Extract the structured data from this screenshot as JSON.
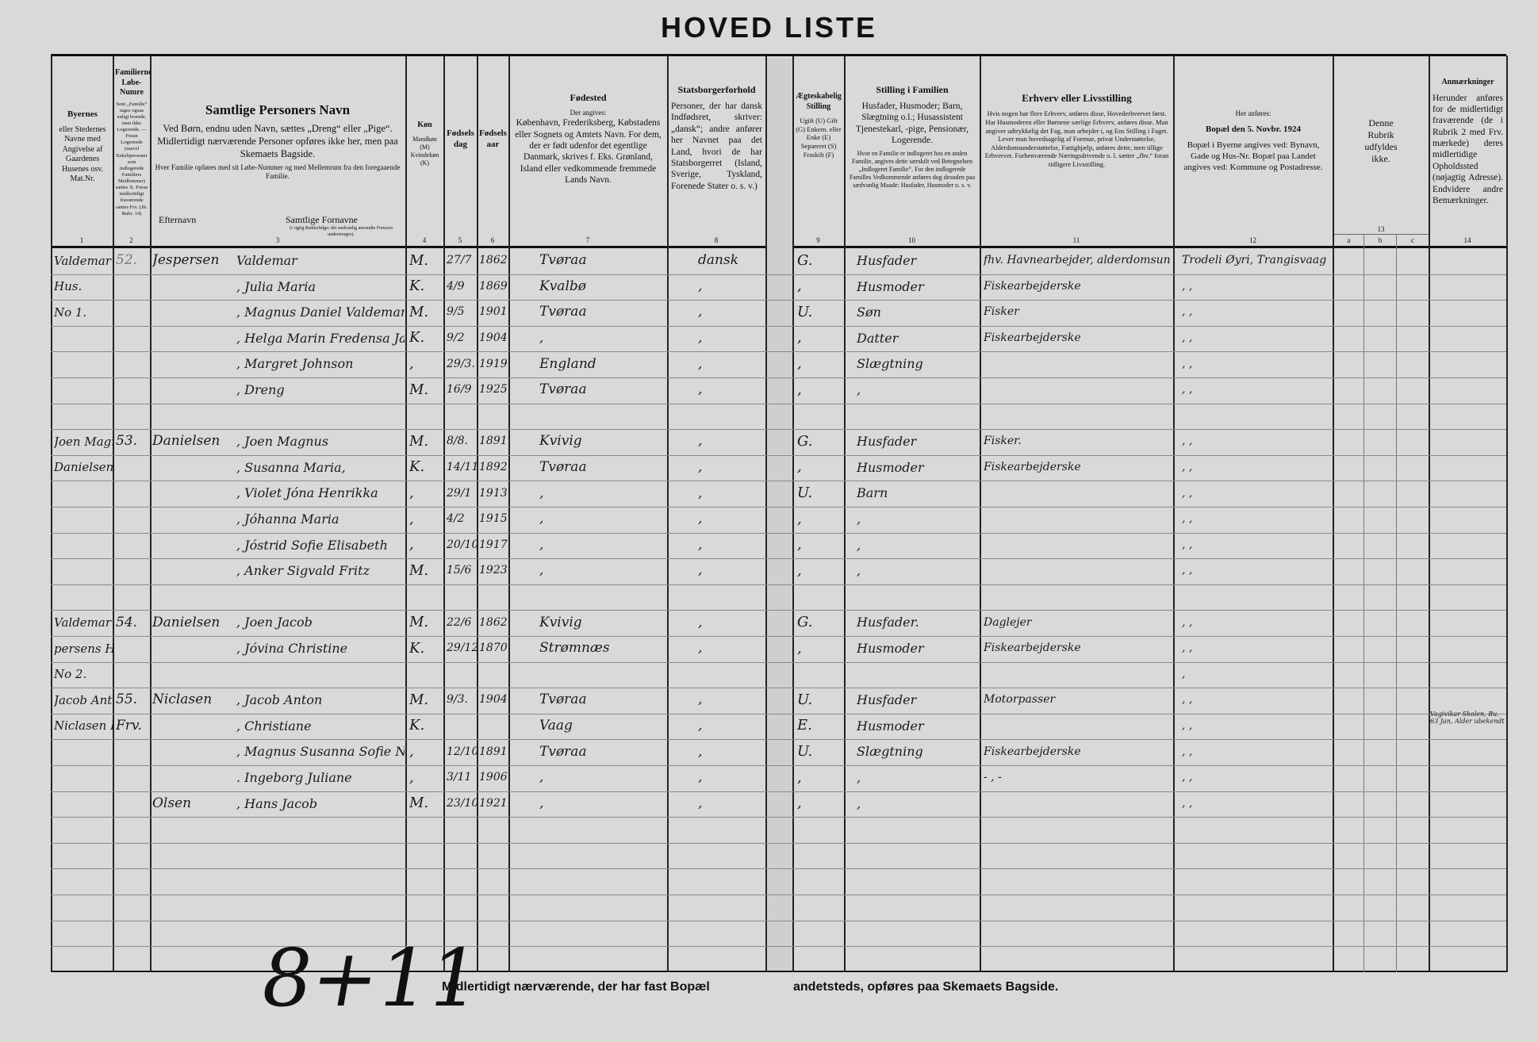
{
  "title": "HOVED LISTE",
  "header": {
    "c1": {
      "title": "Byernes",
      "body": "eller Stedernes Navne med Angivelse af Gaardenes Husenes osv. Mat.Nr.",
      "num": "1"
    },
    "c2": {
      "title": "Familiernes Løbe-Numre",
      "body": "Som „Familie“ tages ogsaa enligt boende, men ikke Logerende. — Foran Logerende (saavel Enkeltpersoner som indlogerede Familiers Medlemmer) sættes X. Foran midlertidigt fraværende sættes Frv. (Jfr. Rubr. 14)",
      "num": "2"
    },
    "c3": {
      "title": "Samtlige Personers Navn",
      "body": "Ved Børn, endnu uden Navn, sættes „Dreng“ eller „Pige“. Midlertidigt nærværende Personer opføres ikke her, men paa Skemaets Bagside.",
      "small": "Hver Familie opføres med sit Løbe-Nummer og med Mellemrum fra den foregaaende Familie.",
      "surname": "Efternavn",
      "firstnames": "Samtlige Fornavne",
      "firstnames_note": "(i rigtig Rækkefølge; det sædvanlig anvendte Fornavn understreges).",
      "num": "3"
    },
    "c4": {
      "title": "Køn",
      "body": "Mandkøn (M) Kvindekøn (K)",
      "num": "4"
    },
    "c5": {
      "title": "Fødselsdag",
      "body": "",
      "num": "5"
    },
    "c6": {
      "title": "Fødselsaar",
      "body": "",
      "num": "6"
    },
    "c7": {
      "title": "Fødested",
      "small": "Der angives:",
      "body": "København, Frederiksberg, Købstadens eller Sognets og Amtets Navn. For dem, der er født udenfor det egentlige Danmark, skrives f. Eks. Grønland, Island eller vedkommende fremmede Lands Navn.",
      "num": "7"
    },
    "c8": {
      "title": "Statsborgerforhold",
      "body": "Personer, der har dansk Indfødsret, skriver: „dansk“; andre anfører her Navnet paa det Land, hvori de har Statsborgerret (Island, Sverige, Tyskland, Forenede Stater o. s. v.)",
      "num": "8"
    },
    "c9": {
      "title": "Ægteskabelig Stilling",
      "body": "Ugift (U) Gift (G) Enkem. eller Enke (E) Separeret (S) Fraskilt (F)",
      "num": "9"
    },
    "c10": {
      "title": "Stilling i Familien",
      "body": "Husfader, Husmoder; Barn, Slægtning o.l.; Husassistent Tjenestekarl, -pige, Pensionær, Logerende.",
      "small": "Hvor en Familie er indlogeret hos en anden Familie, angives dette særskilt ved Betegnelsen „Indlogeret Familie“. For den indlogerede Familles Vedkommende anføres dog desuden paa sædvanlig Maade: Husfader, Husmoder o. s. v.",
      "num": "10"
    },
    "c11": {
      "title": "Erhverv eller Livsstilling",
      "body": "Hvis nogen har flere Erhverv, anføres disse, Hovederhvervet først. Har Husmoderen eller Børnene særlige Erhverv, anføres disse. Man angiver udtrykkelig det Fag, man arbejder i, og Ens Stilling i Faget. Lever man hovedsagelig af Formue, privat Understøttelse, Alderdomsunderstøttelse, Fattighjælp, anføres dette, men tillige Erhvervet. Forhenværende Næringsdrivende o. l. sætter „fhv.“ foran tidligere Livsstilling.",
      "num": "11"
    },
    "c12": {
      "small": "Her anføres:",
      "title": "Bopæl den 5. Novbr. 1924",
      "body": "Bopæl i Byerne angives ved: Bynavn, Gade og Hus-Nr. Bopæl paa Landet angives ved: Kommune og Postadresse.",
      "num": "12"
    },
    "c13": {
      "body": "Denne Rubrik udfyldes ikke.",
      "num": "13",
      "sub": [
        "a",
        "b",
        "c"
      ]
    },
    "c14": {
      "title": "Anmærkninger",
      "body": "Herunder anføres for de midlertidigt fraværende (de i Rubrik 2 med Frv. mærkede) deres midlertidige Opholdssted (nøjagtig Adresse). Endvidere andre Bemærkninger.",
      "num": "14"
    }
  },
  "rows": [
    {
      "place": "Valdemar Jespersen",
      "fam_no": "52.",
      "surname": "Jespersen",
      "first_names": "Valdemar",
      "sex": "M.",
      "day": "27/7",
      "year": "1862",
      "birthplace": "Tvøraa",
      "citizenship": "dansk",
      "marital": "G.",
      "position": "Husfader",
      "occupation": "fhv. Havnearbejder, alderdomsunderst.",
      "residence": "Trodeli Øyri, Trangisvaag",
      "remarks": ""
    },
    {
      "place": "Hus.",
      "fam_no": "",
      "surname": "",
      "first_names": ", Julia Maria",
      "sex": "K.",
      "day": "4/9",
      "year": "1869.",
      "birthplace": "Kvalbø",
      "citizenship": ",",
      "marital": ",",
      "position": "Husmoder",
      "occupation": "Fiskearbejderske",
      "residence": ",      ,",
      "remarks": ""
    },
    {
      "place": "No 1.",
      "fam_no": "",
      "surname": "",
      "first_names": ", Magnus Daniel Valdemar",
      "sex": "M.",
      "day": "9/5",
      "year": "1901.",
      "birthplace": "Tvøraa",
      "citizenship": ",",
      "marital": "U.",
      "position": "Søn",
      "occupation": "Fisker",
      "residence": ",      ,",
      "remarks": ""
    },
    {
      "place": "",
      "fam_no": "",
      "surname": "",
      "first_names": ", Helga Marin Fredensa Jacobina",
      "sex": "K.",
      "day": "9/2",
      "year": "1904",
      "birthplace": ",",
      "citizenship": ",",
      "marital": ",",
      "position": "Datter",
      "occupation": "Fiskearbejderske",
      "residence": ",      ,",
      "remarks": ""
    },
    {
      "place": "",
      "fam_no": "",
      "surname": "",
      "first_names": ", Margret Johnson",
      "sex": ",",
      "day": "29/3.",
      "year": "1919",
      "birthplace": "England",
      "citizenship": ",",
      "marital": ",",
      "position": "Slægtning",
      "occupation": "",
      "residence": ",      ,",
      "remarks": ""
    },
    {
      "place": "",
      "fam_no": "",
      "surname": "",
      "first_names": ", Dreng",
      "sex": "M.",
      "day": "16/9",
      "year": "1925",
      "birthplace": "Tvøraa",
      "citizenship": ",",
      "marital": ",",
      "position": ",",
      "occupation": "",
      "residence": ",      ,",
      "remarks": ""
    },
    {
      "place": "",
      "fam_no": "",
      "surname": "",
      "first_names": "",
      "sex": "",
      "day": "",
      "year": "",
      "birthplace": "",
      "citizenship": "",
      "marital": "",
      "position": "",
      "occupation": "",
      "residence": "",
      "remarks": ""
    },
    {
      "place": "Joen Magnus",
      "fam_no": "53.",
      "surname": "Danielsen",
      "first_names": ", Joen Magnus",
      "sex": "M.",
      "day": "8/8.",
      "year": "1891.",
      "birthplace": "Kvivig",
      "citizenship": ",",
      "marital": "G.",
      "position": "Husfader",
      "occupation": "Fisker.",
      "residence": ",      ,",
      "remarks": ""
    },
    {
      "place": "Danielsen Hus",
      "fam_no": "",
      "surname": "",
      "first_names": ", Susanna Maria,",
      "sex": "K.",
      "day": "14/11",
      "year": "1892",
      "birthplace": "Tvøraa",
      "citizenship": ",",
      "marital": ",",
      "position": "Husmoder",
      "occupation": "Fiskearbejderske",
      "residence": ",      ,",
      "remarks": ""
    },
    {
      "place": "",
      "fam_no": "",
      "surname": "",
      "first_names": ", Violet Jóna Henrikka",
      "sex": ",",
      "day": "29/1",
      "year": "1913",
      "birthplace": ",",
      "citizenship": ",",
      "marital": "U.",
      "position": "Barn",
      "occupation": "",
      "residence": ",      ,",
      "remarks": ""
    },
    {
      "place": "",
      "fam_no": "",
      "surname": "",
      "first_names": ", Jóhanna Maria",
      "sex": ",",
      "day": "4/2",
      "year": "1915",
      "birthplace": ",",
      "citizenship": ",",
      "marital": ",",
      "position": ",",
      "occupation": "",
      "residence": ",      ,",
      "remarks": ""
    },
    {
      "place": "",
      "fam_no": "",
      "surname": "",
      "first_names": ", Jóstrid Sofie Elisabeth",
      "sex": ",",
      "day": "20/10",
      "year": "1917",
      "birthplace": ",",
      "citizenship": ",",
      "marital": ",",
      "position": ",",
      "occupation": "",
      "residence": ",      ,",
      "remarks": ""
    },
    {
      "place": "",
      "fam_no": "",
      "surname": "",
      "first_names": ", Anker Sigvald Fritz",
      "sex": "M.",
      "day": "15/6",
      "year": "1923",
      "birthplace": ",",
      "citizenship": ",",
      "marital": ",",
      "position": ",",
      "occupation": "",
      "residence": ",      ,",
      "remarks": ""
    },
    {
      "place": "",
      "fam_no": "",
      "surname": "",
      "first_names": "",
      "sex": "",
      "day": "",
      "year": "",
      "birthplace": "",
      "citizenship": "",
      "marital": "",
      "position": "",
      "occupation": "",
      "residence": "",
      "remarks": ""
    },
    {
      "place": "Valdemar Jes-",
      "fam_no": "54.",
      "surname": "Danielsen",
      "first_names": ", Joen Jacob",
      "sex": "M.",
      "day": "22/6",
      "year": "1862",
      "birthplace": "Kvivig",
      "citizenship": ",",
      "marital": "G.",
      "position": "Husfader.",
      "occupation": "Daglejer",
      "residence": ",      ,",
      "remarks": ""
    },
    {
      "place": "persens Hus.",
      "fam_no": "",
      "surname": "",
      "first_names": ", Jóvina Christine",
      "sex": "K.",
      "day": "29/12",
      "year": "1870",
      "birthplace": "Strømnæs",
      "citizenship": ",",
      "marital": ",",
      "position": "Husmoder",
      "occupation": "Fiskearbejderske",
      "residence": ",      ,",
      "remarks": ""
    },
    {
      "place": "No 2.",
      "fam_no": "",
      "surname": "",
      "first_names": "",
      "sex": "",
      "day": "",
      "year": "",
      "birthplace": "",
      "citizenship": "",
      "marital": "",
      "position": "",
      "occupation": "",
      "residence": ",",
      "remarks": ""
    },
    {
      "place": "Jacob Anton",
      "fam_no": "55.",
      "surname": "Niclasen",
      "first_names": ", Jacob Anton",
      "sex": "M.",
      "day": "9/3.",
      "year": "1904.",
      "birthplace": "Tvøraa",
      "citizenship": ",",
      "marital": "U.",
      "position": "Husfader",
      "occupation": "Motorpasser",
      "residence": ",      ,",
      "remarks": ""
    },
    {
      "place": "Niclasen Hus",
      "fam_no": "Frv.",
      "surname": "",
      "first_names": ", Christiane",
      "sex": "K.",
      "day": "",
      "year": "",
      "birthplace": "Vaag",
      "citizenship": ",",
      "marital": "E.",
      "position": "Husmoder",
      "occupation": "",
      "residence": ",      ,",
      "remarks": "Vagivíkar Skolen, Bu. 63 Jan, Alder ubekendt"
    },
    {
      "place": "",
      "fam_no": "",
      "surname": "",
      "first_names": ", Magnus Susanna Sofie Nicoline",
      "sex": ",",
      "day": "12/10",
      "year": "1891",
      "birthplace": "Tvøraa",
      "citizenship": ",",
      "marital": "U.",
      "position": "Slægtning",
      "occupation": "Fiskearbejderske",
      "residence": ",      ,",
      "remarks": ""
    },
    {
      "place": "",
      "fam_no": "",
      "surname": "",
      "first_names": ". Ingeborg Juliane",
      "sex": ",",
      "day": "3/11",
      "year": "1906",
      "birthplace": ",",
      "citizenship": ",",
      "marital": ",",
      "position": ",",
      "occupation": "- , -",
      "residence": ",      ,",
      "remarks": ""
    },
    {
      "place": "",
      "fam_no": "",
      "surname": "Olsen",
      "first_names": ", Hans Jacob",
      "sex": "M.",
      "day": "23/10",
      "year": "1921.",
      "birthplace": ",",
      "citizenship": ",",
      "marital": ",",
      "position": ",",
      "occupation": "",
      "residence": ",      ,",
      "remarks": ""
    }
  ],
  "footer": {
    "handwritten_total": "8+11",
    "note_part1": "Midlertidigt nærværende, der har fast Bopæl",
    "note_part2": "andetsteds, opføres paa Skemaets Bagside."
  }
}
